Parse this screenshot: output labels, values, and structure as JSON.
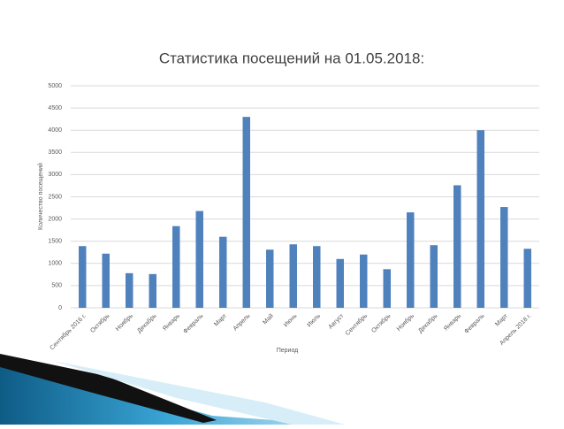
{
  "chart_data": {
    "type": "bar",
    "title": "Статистика посещений на 01.05.2018:",
    "x_label": "Период",
    "y_label": "Количество посещений",
    "categories": [
      "Сентябрь 2016 г.",
      "Октябрь",
      "Ноябрь",
      "Декабрь",
      "Январь",
      "Февраль",
      "Март",
      "Апрель",
      "Май",
      "Июнь",
      "Июль",
      "Август",
      "Сентябрь",
      "Октябрь",
      "Ноябрь",
      "Декабрь",
      "Январь",
      "Февраль",
      "Март",
      "Апрель 2018 г."
    ],
    "values": [
      1390,
      1220,
      780,
      760,
      1840,
      2180,
      1600,
      4300,
      1310,
      1430,
      1390,
      1100,
      1200,
      870,
      2150,
      1410,
      2760,
      4000,
      2270,
      1330
    ],
    "color": "#4f81bd",
    "ylim": [
      0,
      5000
    ],
    "yticks": [
      0,
      500,
      1000,
      1500,
      2000,
      2500,
      3000,
      3500,
      4000,
      4500,
      5000
    ],
    "grid": true
  }
}
